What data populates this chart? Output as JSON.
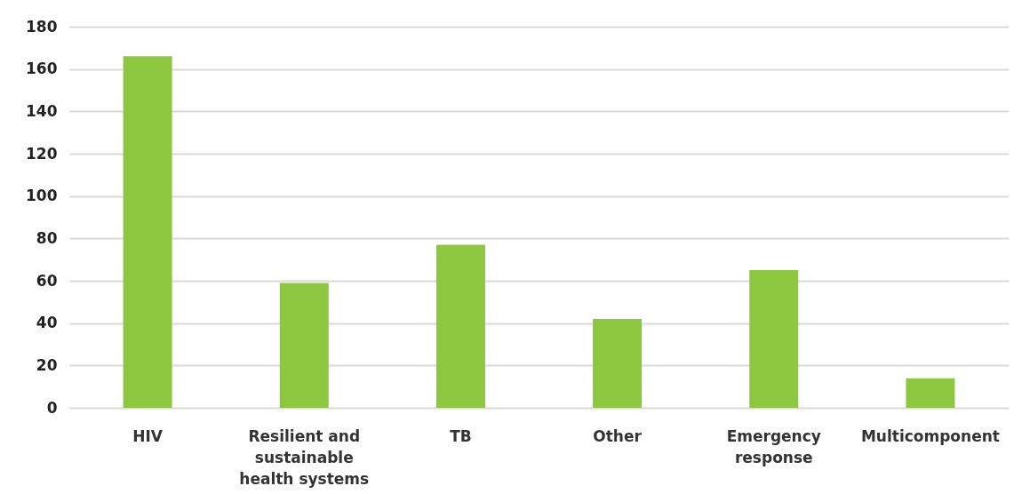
{
  "chart_data": {
    "type": "bar",
    "categories": [
      "HIV",
      "Resilient and sustainable health systems",
      "TB",
      "Other",
      "Emergency response",
      "Multicomponent"
    ],
    "values": [
      166,
      59,
      77,
      42,
      65,
      14
    ],
    "color": "#8dc63f",
    "ylim": [
      0,
      180
    ],
    "yticks": [
      0,
      20,
      40,
      60,
      80,
      100,
      120,
      140,
      160,
      180
    ],
    "grid": "y"
  }
}
